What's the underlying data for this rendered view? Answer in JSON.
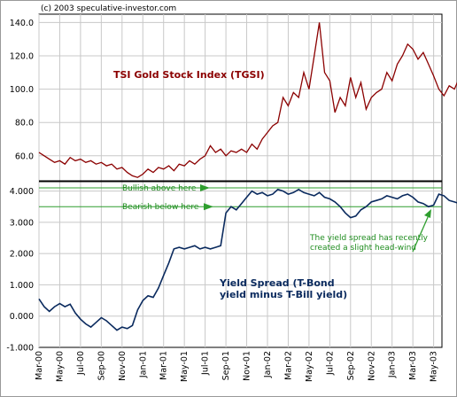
{
  "copyright": "(c) 2003 speculative-investor.com",
  "chart_data": [
    {
      "type": "line",
      "title": "TSI Gold Stock Index (TGSI)",
      "y_ticks": [
        "140.0",
        "120.0",
        "100.0",
        "80.0",
        "60.0"
      ],
      "ylim": [
        45,
        145
      ],
      "grid": true,
      "series": [
        {
          "name": "TSI Gold Stock Index (TGSI)",
          "color": "#8b0000",
          "x_months": [
            0,
            0.5,
            1,
            1.5,
            2,
            2.5,
            3,
            3.5,
            4,
            4.5,
            5,
            5.5,
            6,
            6.5,
            7,
            7.5,
            8,
            8.5,
            9,
            9.5,
            10,
            10.5,
            11,
            11.5,
            12,
            12.5,
            13,
            13.5,
            14,
            14.5,
            15,
            15.5,
            16,
            16.5,
            17,
            17.5,
            18,
            18.5,
            19,
            19.5,
            20,
            20.5,
            21,
            21.5,
            22,
            22.5,
            23,
            23.5,
            24,
            24.5,
            25,
            25.5,
            26,
            26.5,
            27,
            27.5,
            28,
            28.5,
            29,
            29.5,
            30,
            30.5,
            31,
            31.5,
            32,
            32.5,
            33,
            33.5,
            34,
            34.5,
            35,
            35.5,
            36,
            36.5,
            37,
            37.5,
            38,
            38.5,
            39,
            39.5,
            40,
            40.5
          ],
          "values": [
            62,
            60,
            58,
            56,
            57,
            55,
            59,
            57,
            58,
            56,
            57,
            55,
            56,
            54,
            55,
            52,
            53,
            50,
            48,
            47,
            49,
            52,
            50,
            53,
            52,
            54,
            51,
            55,
            54,
            57,
            55,
            58,
            60,
            66,
            62,
            64,
            60,
            63,
            62,
            64,
            62,
            67,
            64,
            70,
            74,
            78,
            80,
            95,
            90,
            98,
            95,
            110,
            100,
            120,
            140,
            110,
            105,
            86,
            95,
            90,
            107,
            95,
            104,
            88,
            95,
            98,
            100,
            110,
            105,
            115,
            120,
            127,
            124,
            118,
            122,
            115,
            108,
            100,
            96,
            102,
            100,
            107
          ]
        }
      ]
    },
    {
      "type": "line",
      "title": "Yield Spread (T-Bond yield minus T-Bill yield)",
      "title_lines": [
        "Yield Spread (T-Bond",
        "yield minus T-Bill yield)"
      ],
      "y_ticks": [
        "4.000",
        "3.000",
        "2.000",
        "1.000",
        "0.000",
        "-1.000"
      ],
      "ylim": [
        -1,
        4.3
      ],
      "grid": true,
      "x_tick_labels": [
        "Mar-00",
        "May-00",
        "Jul-00",
        "Sep-00",
        "Nov-00",
        "Jan-01",
        "Mar-01",
        "May-01",
        "Jul-01",
        "Sep-01",
        "Nov-01",
        "Jan-02",
        "Mar-02",
        "May-02",
        "Jul-02",
        "Sep-02",
        "Nov-02",
        "Jan-03",
        "Mar-03",
        "May-03"
      ],
      "annotations": {
        "bullish": "Bullish above here",
        "bearish": "Bearish below here",
        "note_line1": "The yield spread has recently",
        "note_line2": "created a slight head-wind"
      },
      "reference_lines": [
        {
          "label": "Bullish above here",
          "y": 4.1
        },
        {
          "label": "Bearish below here",
          "y": 3.5
        }
      ],
      "series": [
        {
          "name": "Yield Spread",
          "color": "#0a2a5e",
          "x_months": [
            0,
            0.5,
            1,
            1.5,
            2,
            2.5,
            3,
            3.5,
            4,
            4.5,
            5,
            5.5,
            6,
            6.5,
            7,
            7.5,
            8,
            8.5,
            9,
            9.5,
            10,
            10.5,
            11,
            11.5,
            12,
            12.5,
            13,
            13.5,
            14,
            14.5,
            15,
            15.5,
            16,
            16.5,
            17,
            17.5,
            18,
            18.5,
            19,
            19.5,
            20,
            20.5,
            21,
            21.5,
            22,
            22.5,
            23,
            23.5,
            24,
            24.5,
            25,
            25.5,
            26,
            26.5,
            27,
            27.5,
            28,
            28.5,
            29,
            29.5,
            30,
            30.5,
            31,
            31.5,
            32,
            32.5,
            33,
            33.5,
            34,
            34.5,
            35,
            35.5,
            36,
            36.5,
            37,
            37.5,
            38,
            38.5,
            39,
            39.5,
            40,
            40.5
          ],
          "values": [
            0.55,
            0.3,
            0.15,
            0.3,
            0.4,
            0.3,
            0.38,
            0.1,
            -0.1,
            -0.25,
            -0.35,
            -0.2,
            -0.05,
            -0.15,
            -0.3,
            -0.45,
            -0.35,
            -0.4,
            -0.3,
            0.2,
            0.5,
            0.65,
            0.6,
            0.9,
            1.3,
            1.7,
            2.15,
            2.2,
            2.15,
            2.2,
            2.25,
            2.15,
            2.2,
            2.15,
            2.2,
            2.25,
            3.3,
            3.5,
            3.4,
            3.6,
            3.8,
            4.0,
            3.9,
            3.95,
            3.85,
            3.9,
            4.05,
            4.0,
            3.9,
            3.95,
            4.05,
            3.95,
            3.9,
            3.85,
            3.95,
            3.8,
            3.75,
            3.65,
            3.5,
            3.3,
            3.15,
            3.2,
            3.4,
            3.5,
            3.65,
            3.7,
            3.75,
            3.85,
            3.8,
            3.75,
            3.85,
            3.9,
            3.8,
            3.65,
            3.6,
            3.5,
            3.55,
            3.9,
            3.85,
            3.7,
            3.65,
            3.6
          ]
        }
      ]
    }
  ]
}
